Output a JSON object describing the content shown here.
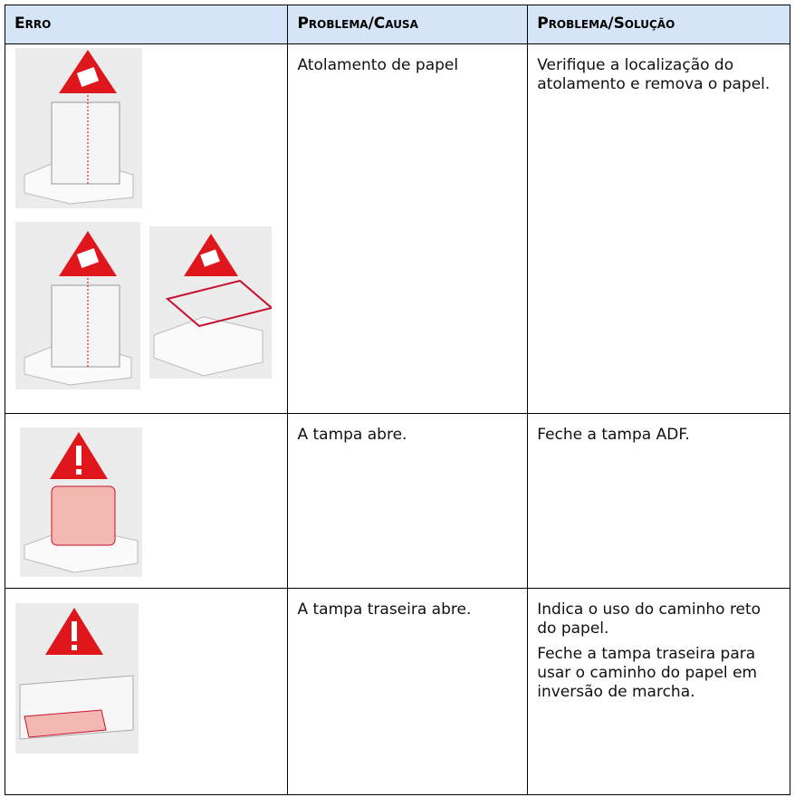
{
  "table": {
    "header": [
      "Erro",
      "Problema/Causa",
      "Problema/Solução"
    ],
    "rows": [
      {
        "cause": "Atolamento de papel",
        "solution": [
          "Verifique a localização do atolamento e remova o papel."
        ]
      },
      {
        "cause": "A tampa abre.",
        "solution": [
          "Feche a tampa ADF."
        ]
      },
      {
        "cause": "A tampa traseira abre.",
        "solution": [
          "Indica o uso do caminho reto do papel.",
          "Feche a tampa traseira para usar o caminho do papel em inversão de marcha."
        ]
      }
    ]
  }
}
